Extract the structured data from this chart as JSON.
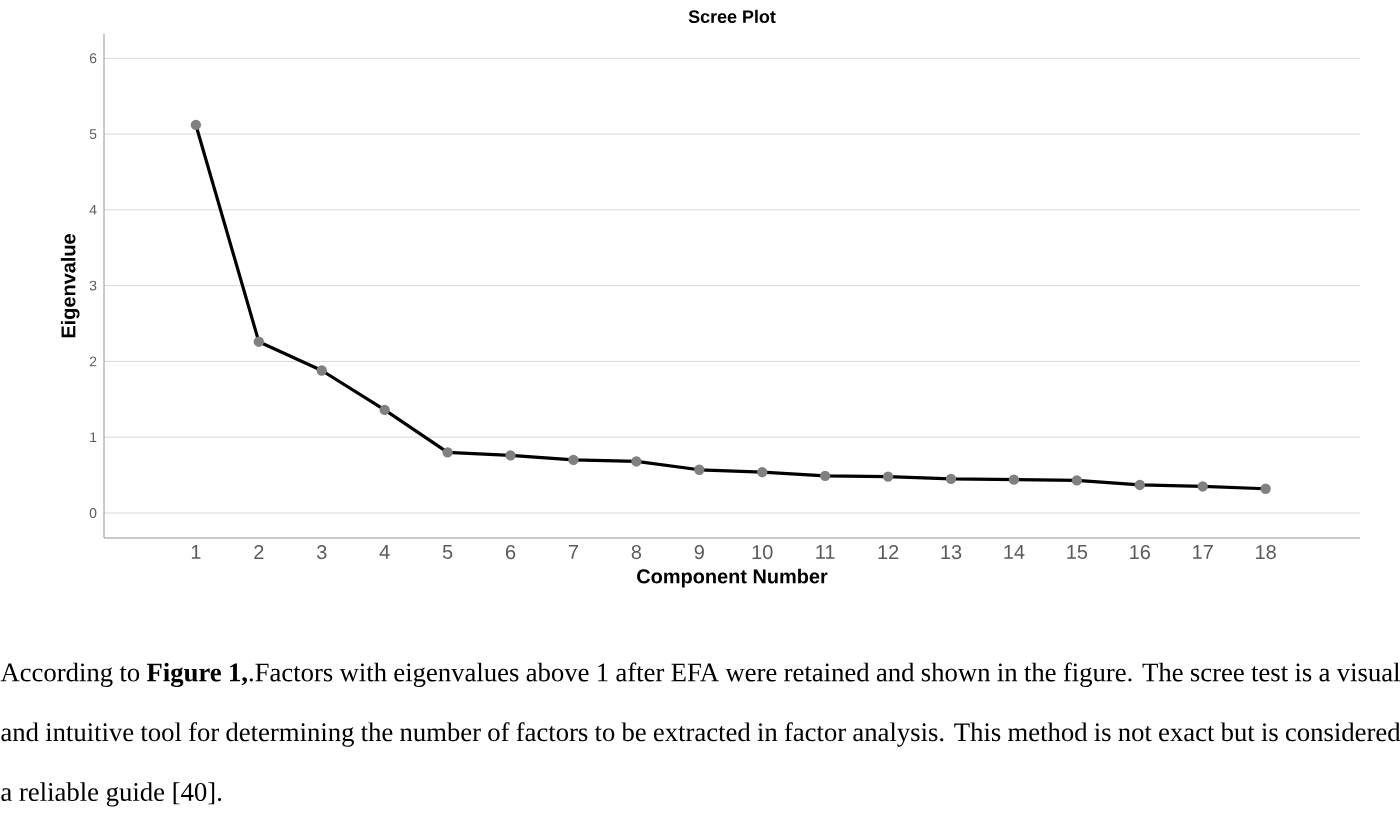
{
  "chart_data": {
    "type": "line",
    "title": "Scree Plot",
    "xlabel": "Component Number",
    "ylabel": "Eigenvalue",
    "categories": [
      "1",
      "2",
      "3",
      "4",
      "5",
      "6",
      "7",
      "8",
      "9",
      "10",
      "11",
      "12",
      "13",
      "14",
      "15",
      "16",
      "17",
      "18"
    ],
    "series": [
      {
        "color": "#000000",
        "values": [
          5.12,
          2.26,
          1.88,
          1.36,
          0.8,
          0.76,
          0.7,
          0.68,
          0.57,
          0.54,
          0.49,
          0.48,
          0.45,
          0.44,
          0.43,
          0.37,
          0.35,
          0.32
        ]
      }
    ],
    "ylim": [
      -0.33,
      6.32
    ],
    "yticks": [
      0,
      1,
      2,
      3,
      4,
      5,
      6
    ],
    "grid": "y",
    "marker": "circle",
    "line_style": "solid",
    "annotations": [
      "According to **Figure 1,**.Factors with eigenvalues above 1 after EFA were retained and shown in the figure. The scree test is a visual and intuitive tool for determining the number of factors to be extracted in factor analysis. This method is not exact but is considered a reliable guide [40]."
    ]
  }
}
